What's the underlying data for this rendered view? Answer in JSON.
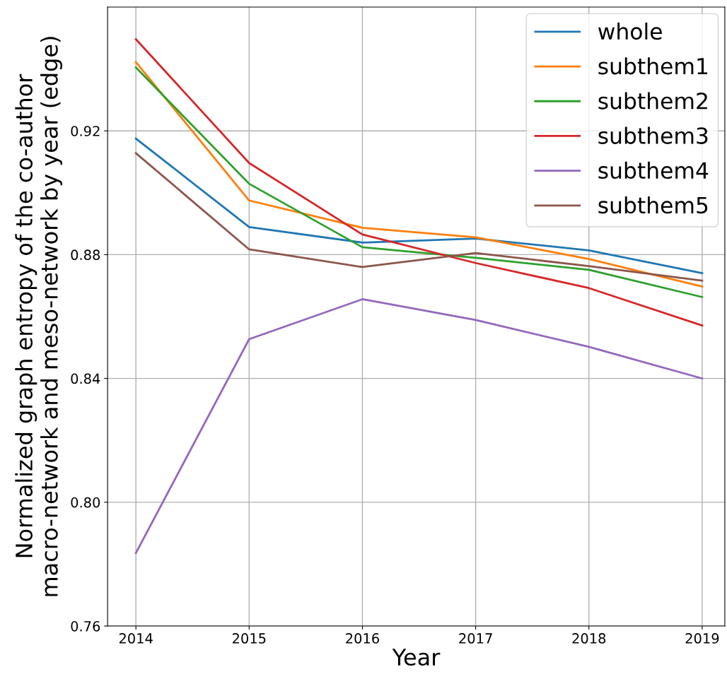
{
  "chart_data": {
    "type": "line",
    "xlabel": "Year",
    "ylabel": "Normalized graph entropy of the co-author\nmacro-network and meso-network by year (edge)",
    "x": [
      2014,
      2015,
      2016,
      2017,
      2018,
      2019
    ],
    "series": [
      {
        "name": "whole",
        "color": "#1f77b4",
        "values": [
          0.9175,
          0.8889,
          0.8839,
          0.8852,
          0.8814,
          0.874
        ]
      },
      {
        "name": "subthem1",
        "color": "#ff7f0e",
        "values": [
          0.9422,
          0.8975,
          0.8887,
          0.8856,
          0.8786,
          0.8697
        ]
      },
      {
        "name": "subthem2",
        "color": "#2ca02c",
        "values": [
          0.9405,
          0.9029,
          0.8824,
          0.879,
          0.8751,
          0.8663
        ]
      },
      {
        "name": "subthem3",
        "color": "#d62728",
        "values": [
          0.9496,
          0.9096,
          0.8865,
          0.8773,
          0.8692,
          0.8571
        ]
      },
      {
        "name": "subthem4",
        "color": "#9467bd",
        "values": [
          0.7836,
          0.8527,
          0.8656,
          0.8589,
          0.8502,
          0.84
        ]
      },
      {
        "name": "subthem5",
        "color": "#8c564b",
        "values": [
          0.9128,
          0.8817,
          0.876,
          0.8805,
          0.8763,
          0.8716
        ]
      }
    ],
    "xlim": [
      2013.75,
      2019.2
    ],
    "ylim": [
      0.76,
      0.96
    ],
    "xticks": [
      2014,
      2015,
      2016,
      2017,
      2018,
      2019
    ],
    "yticks": [
      0.76,
      {
        "value": 0.8,
        "label": "0.80"
      },
      0.84,
      0.88,
      0.92
    ],
    "grid": true,
    "legend": "top right",
    "marker": "none",
    "line_style": "solid"
  }
}
